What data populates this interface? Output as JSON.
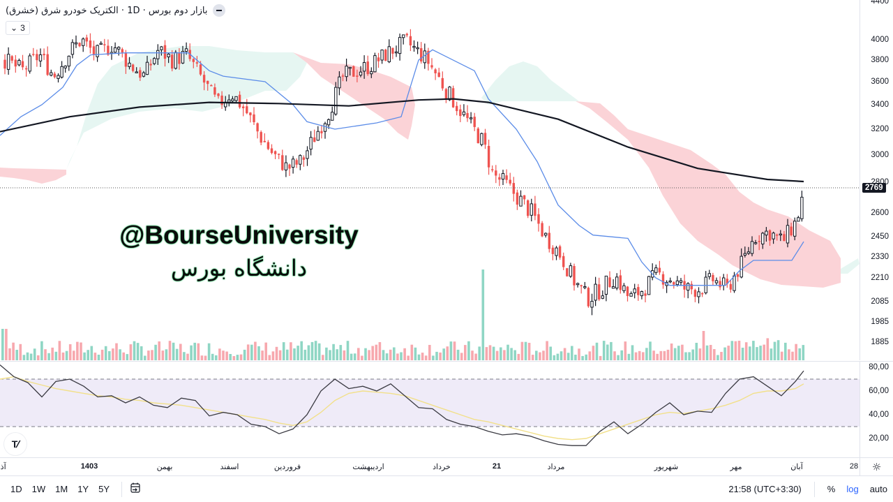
{
  "legend": {
    "title": "بازار دوم بورس · 1D · الکتریک خودرو شرق (خشرق)",
    "indicator_count": "3",
    "collapse_icon": "minus"
  },
  "watermark": {
    "english": "@BourseUniversity",
    "persian": "دانشگاه بورس",
    "color": "#0b0b0b",
    "glow_color": "#17c45a"
  },
  "price_axis": {
    "labels": [
      {
        "value": "4400",
        "y": 2
      },
      {
        "value": "4000",
        "y": 57
      },
      {
        "value": "3800",
        "y": 86
      },
      {
        "value": "3600",
        "y": 117
      },
      {
        "value": "3400",
        "y": 150
      },
      {
        "value": "3200",
        "y": 185
      },
      {
        "value": "3000",
        "y": 222
      },
      {
        "value": "2800",
        "y": 261
      },
      {
        "value": "2600",
        "y": 305
      },
      {
        "value": "2450",
        "y": 339
      },
      {
        "value": "2330",
        "y": 368
      },
      {
        "value": "2210",
        "y": 398
      },
      {
        "value": "2085",
        "y": 432
      },
      {
        "value": "1985",
        "y": 461
      },
      {
        "value": "1885",
        "y": 490
      }
    ],
    "last_price": "2769",
    "last_price_y": 269
  },
  "rsi_axis": {
    "labels": [
      {
        "value": "80,00",
        "y": 8
      },
      {
        "value": "60,00",
        "y": 42
      },
      {
        "value": "40,00",
        "y": 76
      },
      {
        "value": "20,00",
        "y": 110
      }
    ]
  },
  "time_axis": {
    "labels": [
      {
        "text": "آذر",
        "x": 2,
        "bold": false
      },
      {
        "text": "1403",
        "x": 128,
        "bold": true
      },
      {
        "text": "بهمن",
        "x": 236,
        "bold": false
      },
      {
        "text": "اسفند",
        "x": 329,
        "bold": false
      },
      {
        "text": "فروردین",
        "x": 412,
        "bold": false
      },
      {
        "text": "اردیبهشت",
        "x": 528,
        "bold": false
      },
      {
        "text": "خرداد",
        "x": 633,
        "bold": false
      },
      {
        "text": "21",
        "x": 712,
        "bold": true
      },
      {
        "text": "مرداد",
        "x": 797,
        "bold": false
      },
      {
        "text": "شهریور",
        "x": 955,
        "bold": false
      },
      {
        "text": "مهر",
        "x": 1055,
        "bold": false
      },
      {
        "text": "آبان",
        "x": 1142,
        "bold": false
      },
      {
        "text": "28",
        "x": 1224,
        "bold": false
      }
    ]
  },
  "bottom_bar": {
    "ranges": [
      "1D",
      "1W",
      "1M",
      "1Y",
      "5Y"
    ],
    "goto_date_icon": "calendar-arrow",
    "time": "21:58 (UTC+3:30)",
    "percent": "%",
    "log": "log",
    "auto": "auto"
  },
  "colors": {
    "up_body": "#ffffff",
    "up_border": "#131722",
    "down": "#ef5350",
    "vol_up": "#8fd6c4",
    "vol_down": "#f7a8ae",
    "cloud_bull": "#e6f6f2",
    "cloud_bear": "#fbd3d7",
    "kijun": "#5b8ce8",
    "ma": "#131722",
    "rsi": "#3a3a42",
    "rsi_ma": "#f2e08a",
    "rsi_band": "#efebf8"
  },
  "chart_data": {
    "type": "candlestick",
    "title": "بازار دوم بورس · 1D · الکتریک خودرو شرق (خشرق)",
    "symbol": "خشرق",
    "interval": "1D",
    "last_price": 2769,
    "ylim": [
      1885,
      4400
    ],
    "scale": "log",
    "price_points_xy": {
      "description": "approximate closing-price path (x px, price)",
      "x": [
        5,
        30,
        55,
        75,
        100,
        115,
        135,
        160,
        185,
        205,
        225,
        245,
        265,
        290,
        310,
        330,
        350,
        370,
        390,
        410,
        430,
        450,
        470,
        490,
        510,
        530,
        550,
        580,
        610,
        640,
        670,
        690,
        705,
        720,
        740,
        760,
        780,
        800,
        820,
        840,
        860,
        880,
        900,
        920,
        940,
        960,
        980,
        1000,
        1020,
        1040,
        1060,
        1080,
        1100,
        1120,
        1140,
        1152
      ],
      "close": [
        3800,
        3700,
        3850,
        3650,
        3900,
        4000,
        3850,
        3950,
        3750,
        3650,
        3900,
        3800,
        3850,
        3600,
        3400,
        3500,
        3350,
        3150,
        3000,
        2900,
        2950,
        3150,
        3350,
        3650,
        3700,
        3750,
        3850,
        3980,
        3800,
        3500,
        3250,
        3100,
        2850,
        2800,
        2700,
        2600,
        2450,
        2350,
        2200,
        2100,
        2150,
        2220,
        2100,
        2150,
        2230,
        2200,
        2150,
        2150,
        2200,
        2150,
        2280,
        2450,
        2480,
        2420,
        2550,
        2769
      ]
    },
    "moving_average": {
      "name": "MA (long)",
      "color": "#131722",
      "x": [
        0,
        100,
        200,
        300,
        400,
        500,
        600,
        650,
        700,
        800,
        900,
        1000,
        1100,
        1152
      ],
      "value": [
        3180,
        3300,
        3380,
        3420,
        3410,
        3390,
        3440,
        3450,
        3420,
        3280,
        3060,
        2900,
        2820,
        2805
      ]
    },
    "kijun": {
      "name": "Ichimoku base line",
      "color": "#5b8ce8"
    },
    "volume": {
      "description": "daily volume bars, teal=up day, pink=down day; spike near x≈690",
      "max_bar_x": 690
    },
    "rsi": {
      "name": "RSI",
      "upper_band": 70,
      "lower_band": 30,
      "ylim": [
        10,
        85
      ],
      "x": [
        0,
        20,
        40,
        60,
        80,
        100,
        120,
        140,
        160,
        180,
        200,
        220,
        240,
        260,
        280,
        300,
        320,
        340,
        360,
        380,
        400,
        420,
        440,
        460,
        480,
        500,
        520,
        540,
        560,
        580,
        600,
        620,
        640,
        660,
        680,
        700,
        720,
        740,
        760,
        780,
        800,
        820,
        840,
        860,
        880,
        900,
        920,
        940,
        960,
        980,
        1000,
        1020,
        1040,
        1060,
        1080,
        1100,
        1120,
        1140,
        1152
      ],
      "value": [
        82,
        72,
        67,
        55,
        68,
        70,
        64,
        55,
        56,
        50,
        55,
        48,
        46,
        54,
        52,
        39,
        42,
        40,
        32,
        30,
        24,
        28,
        40,
        60,
        70,
        62,
        64,
        60,
        66,
        56,
        46,
        45,
        36,
        32,
        30,
        26,
        23,
        24,
        22,
        18,
        15,
        14,
        14,
        26,
        34,
        24,
        32,
        42,
        50,
        40,
        43,
        42,
        58,
        70,
        72,
        64,
        56,
        68,
        77
      ],
      "ma_value": [
        70,
        72,
        68,
        65,
        62,
        60,
        58,
        56,
        55,
        53,
        52,
        50,
        49,
        48,
        46,
        44,
        42,
        40,
        38,
        36,
        33,
        31,
        34,
        42,
        52,
        58,
        60,
        59,
        58,
        56,
        52,
        48,
        44,
        40,
        36,
        34,
        31,
        28,
        25,
        22,
        20,
        19,
        20,
        24,
        28,
        32,
        36,
        40,
        42,
        41,
        43,
        45,
        48,
        52,
        58,
        60,
        60,
        62,
        66
      ]
    }
  }
}
